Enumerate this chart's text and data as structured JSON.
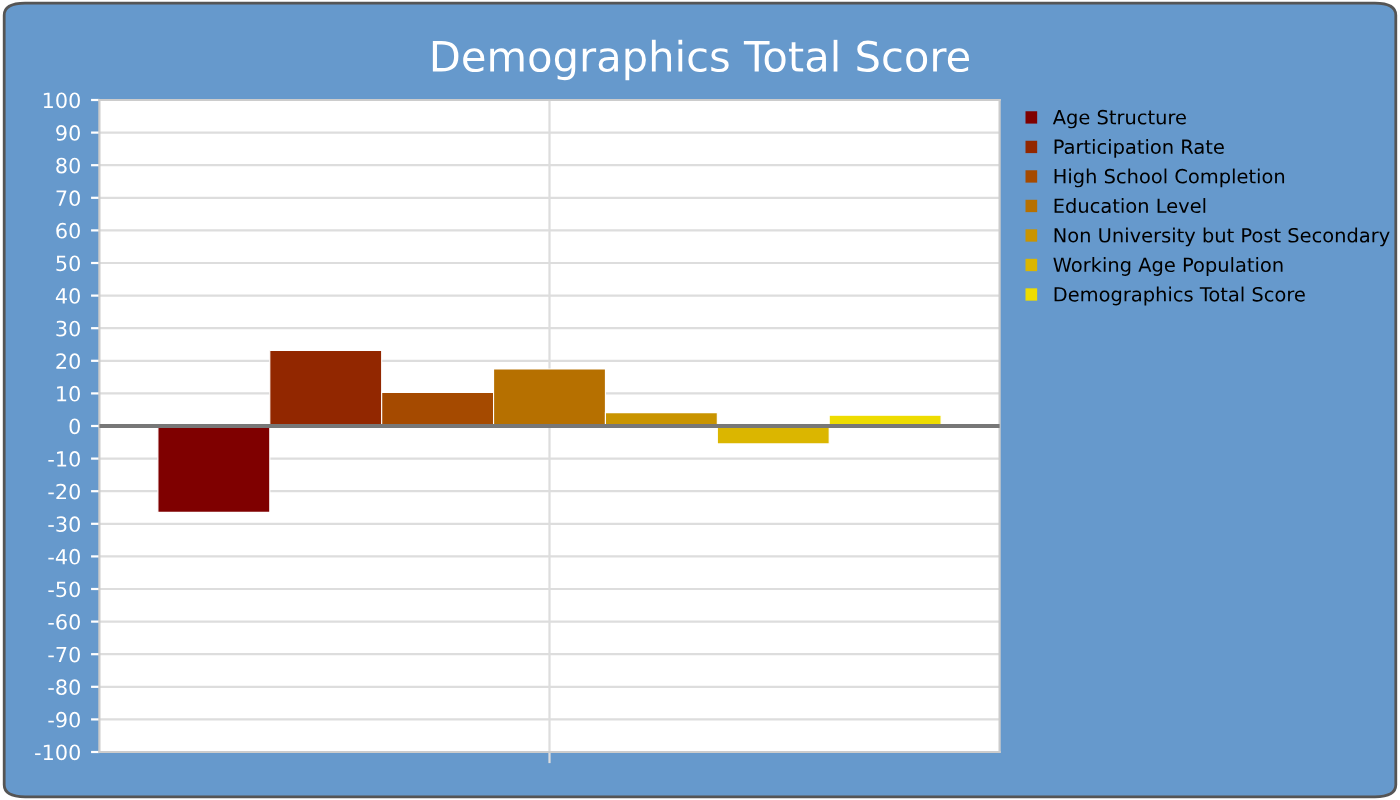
{
  "chart_data": {
    "type": "bar",
    "title": "Demographics Total Score",
    "categories": [
      null
    ],
    "series": [
      {
        "name": "Age Structure",
        "color": "#7f0000",
        "values": [
          -26.5
        ]
      },
      {
        "name": "Participation Rate",
        "color": "#922700",
        "values": [
          23.2
        ]
      },
      {
        "name": "High School Completion",
        "color": "#a54a00",
        "values": [
          10.3
        ]
      },
      {
        "name": "Education Level",
        "color": "#b67000",
        "values": [
          17.5
        ]
      },
      {
        "name": "Non University but Post Secondary",
        "color": "#c99400",
        "values": [
          4.1
        ]
      },
      {
        "name": "Working Age Population",
        "color": "#dbb600",
        "values": [
          -5.5
        ]
      },
      {
        "name": "Demographics Total Score",
        "color": "#eedc00",
        "values": [
          3.3
        ]
      }
    ],
    "ylim": [
      -100,
      100
    ],
    "yticks": [
      -100,
      -90,
      -80,
      -70,
      -60,
      -50,
      -40,
      -30,
      -20,
      -10,
      0,
      10,
      20,
      30,
      40,
      50,
      60,
      70,
      80,
      90,
      100
    ],
    "grid": true,
    "legend": "top right"
  }
}
